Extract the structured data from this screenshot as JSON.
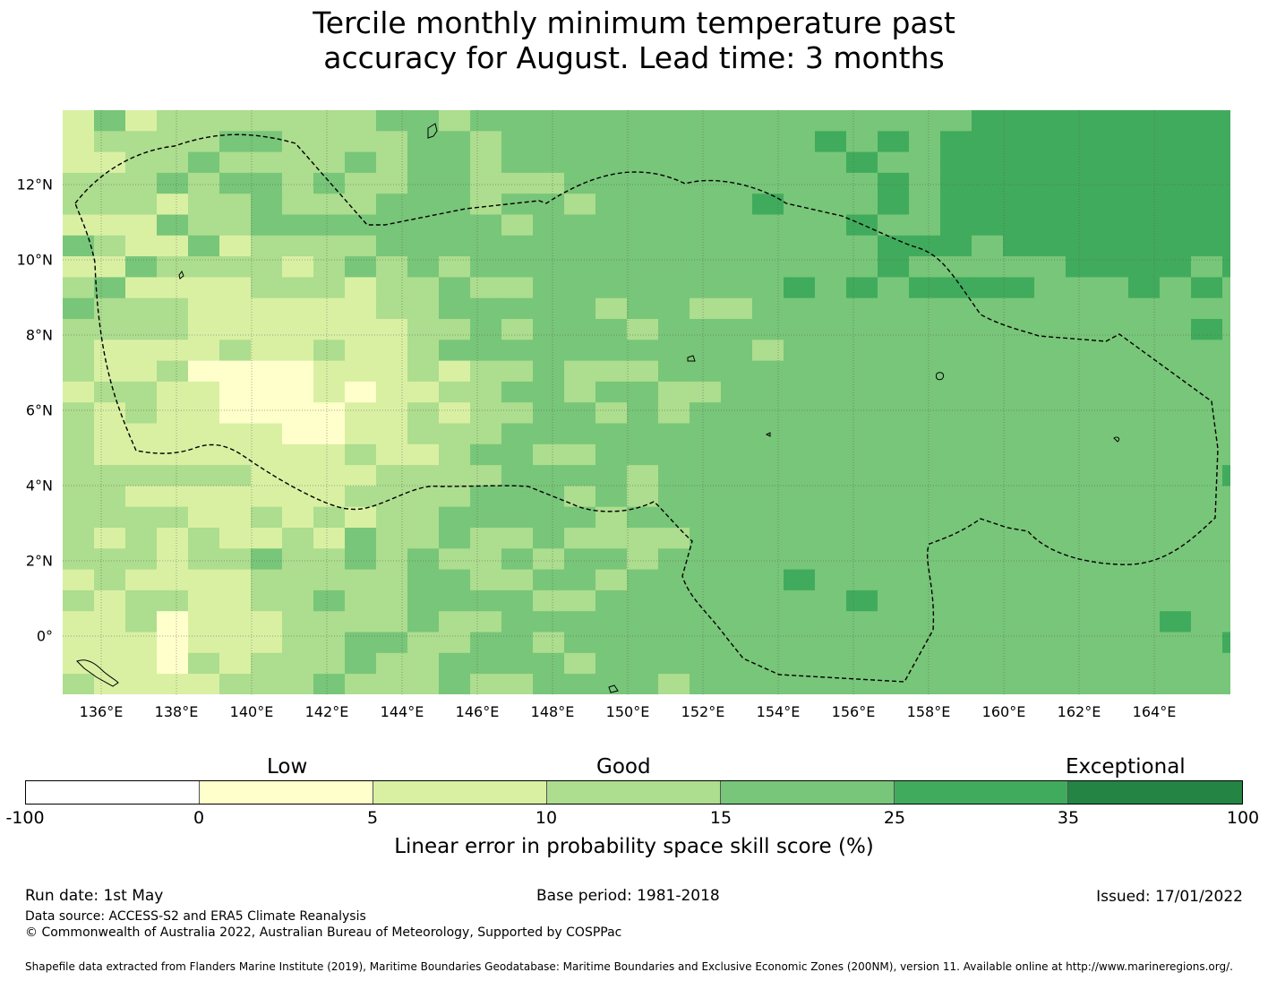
{
  "title": {
    "line1": "Tercile monthly minimum temperature past",
    "line2": "accuracy for August. Lead time: 3 months"
  },
  "map": {
    "x_ticks": [
      "136°E",
      "138°E",
      "140°E",
      "142°E",
      "144°E",
      "146°E",
      "148°E",
      "150°E",
      "152°E",
      "154°E",
      "156°E",
      "158°E",
      "160°E",
      "162°E",
      "164°E"
    ],
    "y_ticks": [
      "12°N",
      "10°N",
      "8°N",
      "6°N",
      "4°N",
      "2°N",
      "0°"
    ],
    "lon_range": [
      135,
      166
    ],
    "lat_range": [
      -1.5,
      14
    ],
    "boundary": "EEZ (dashed)"
  },
  "colorbar": {
    "classes": [
      "Low",
      "Good",
      "Exceptional"
    ],
    "ticks": [
      "-100",
      "0",
      "5",
      "10",
      "15",
      "25",
      "35",
      "100"
    ],
    "colors": [
      "#ffffff",
      "#ffffcc",
      "#d9f0a3",
      "#addd8e",
      "#78c679",
      "#41ab5d",
      "#238443"
    ],
    "label": "Linear error in probability space skill score (%)"
  },
  "footer": {
    "run_date": "Run date: 1st May",
    "base_period": "Base period: 1981-2018",
    "issued": "Issued: 17/01/2022",
    "data_source": "Data source: ACCESS-S2 and ERA5 Climate Reanalysis",
    "copyright": "© Commonwealth of Australia 2022, Australian Bureau of Meteorology, Supported by COSPPac",
    "shapefile": "Shapefile data extracted from Flanders Marine Institute (2019), Maritime Boundaries Geodatabase: Maritime Boundaries and Exclusive Economic Zones (200NM), version 11. Available online at http://www.marineregions.org/."
  }
}
